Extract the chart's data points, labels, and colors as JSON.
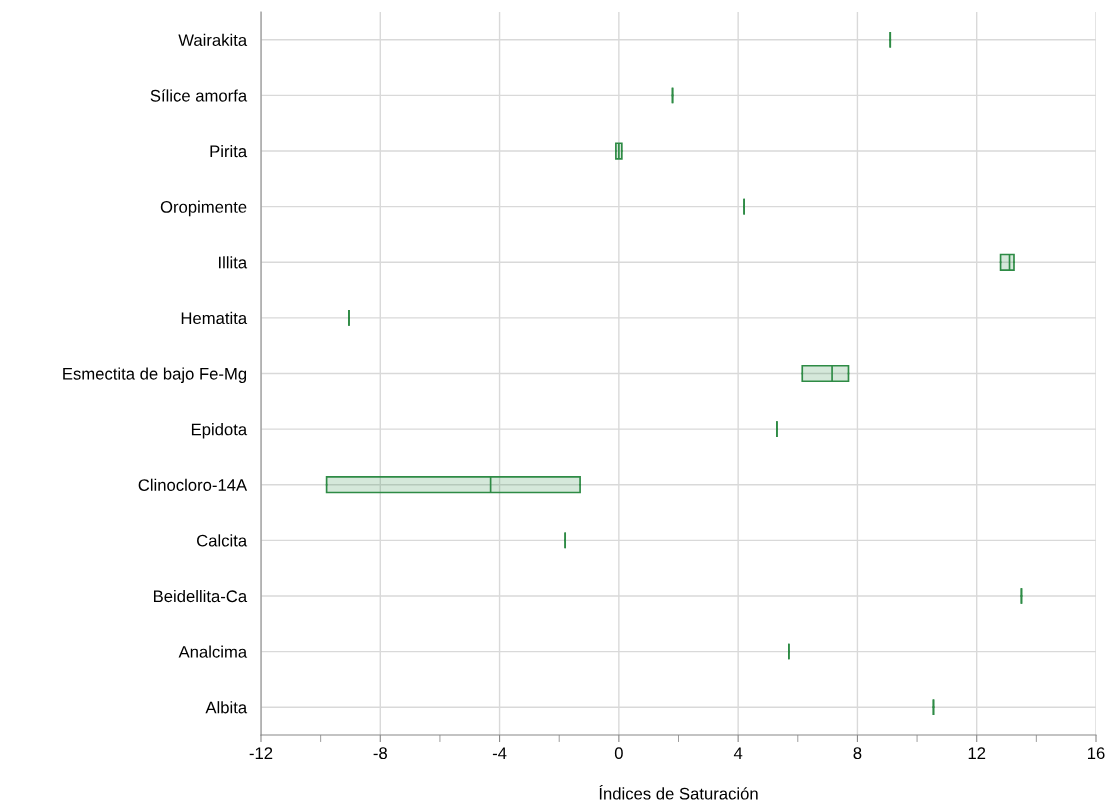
{
  "chart_data": {
    "type": "box",
    "orientation": "horizontal",
    "xlabel": "Índices de Saturación",
    "categories": [
      "Wairakita",
      "Sílice amorfa",
      "Pirita",
      "Oropimente",
      "Illita",
      "Hematita",
      "Esmectita de bajo Fe-Mg",
      "Epidota",
      "Clinocloro-14A",
      "Calcita",
      "Beidellita-Ca",
      "Analcima",
      "Albita"
    ],
    "boxes": [
      {
        "low": 9.1,
        "q1": 9.1,
        "median": 9.1,
        "q3": 9.1,
        "high": 9.1
      },
      {
        "low": 1.8,
        "q1": 1.8,
        "median": 1.8,
        "q3": 1.8,
        "high": 1.8
      },
      {
        "low": -0.1,
        "q1": -0.1,
        "median": 0,
        "q3": 0.1,
        "high": 0.1
      },
      {
        "low": 4.2,
        "q1": 4.2,
        "median": 4.2,
        "q3": 4.2,
        "high": 4.2
      },
      {
        "low": 12.8,
        "q1": 12.8,
        "median": 13.1,
        "q3": 13.25,
        "high": 13.25
      },
      {
        "low": -9.05,
        "q1": -9.05,
        "median": -9.05,
        "q3": -9.05,
        "high": -9.05
      },
      {
        "low": 6.15,
        "q1": 6.15,
        "median": 7.15,
        "q3": 7.7,
        "high": 7.7
      },
      {
        "low": 5.3,
        "q1": 5.3,
        "median": 5.3,
        "q3": 5.3,
        "high": 5.3
      },
      {
        "low": -9.8,
        "q1": -9.8,
        "median": -4.3,
        "q3": -1.3,
        "high": -1.3
      },
      {
        "low": -1.8,
        "q1": -1.8,
        "median": -1.8,
        "q3": -1.8,
        "high": -1.8
      },
      {
        "low": 13.5,
        "q1": 13.5,
        "median": 13.5,
        "q3": 13.5,
        "high": 13.5
      },
      {
        "low": 5.7,
        "q1": 5.7,
        "median": 5.7,
        "q3": 5.7,
        "high": 5.7
      },
      {
        "low": 10.55,
        "q1": 10.55,
        "median": 10.55,
        "q3": 10.55,
        "high": 10.55
      }
    ],
    "color": "#2e8b45",
    "xlim": [
      -12,
      16
    ],
    "xticks": [
      -12,
      {
        "value": -10,
        "label": null
      },
      -8,
      {
        "value": -6,
        "label": null
      },
      -4,
      {
        "value": -2,
        "label": null
      },
      0,
      {
        "value": 2,
        "label": null
      },
      4,
      {
        "value": 6,
        "label": null
      },
      8,
      {
        "value": 10,
        "label": null
      },
      12,
      {
        "value": 14,
        "label": null
      },
      16
    ],
    "grid": true
  }
}
